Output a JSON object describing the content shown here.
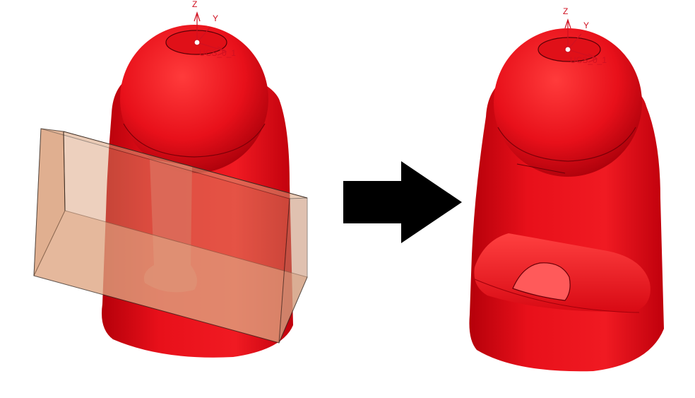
{
  "left_model": {
    "axis_labels": {
      "z": "Z",
      "y": "Y",
      "ucs": "UCS_0_1"
    }
  },
  "right_model": {
    "axis_labels": {
      "z": "Z",
      "y": "Y",
      "ucs": "UCS_0_1"
    }
  },
  "colors": {
    "background": "#ffffff",
    "solid_red": "#e8101a",
    "solid_red_dark": "#b5000a",
    "solid_red_light": "#ff4a4a",
    "cut_box_fill": "#d9a07a",
    "cut_box_edge": "#3a2a20",
    "axis_color": "#d01020",
    "arrow": "#000000"
  },
  "icons": {
    "transform_arrow": "right-arrow-icon",
    "triad": "coordinate-triad-icon"
  }
}
